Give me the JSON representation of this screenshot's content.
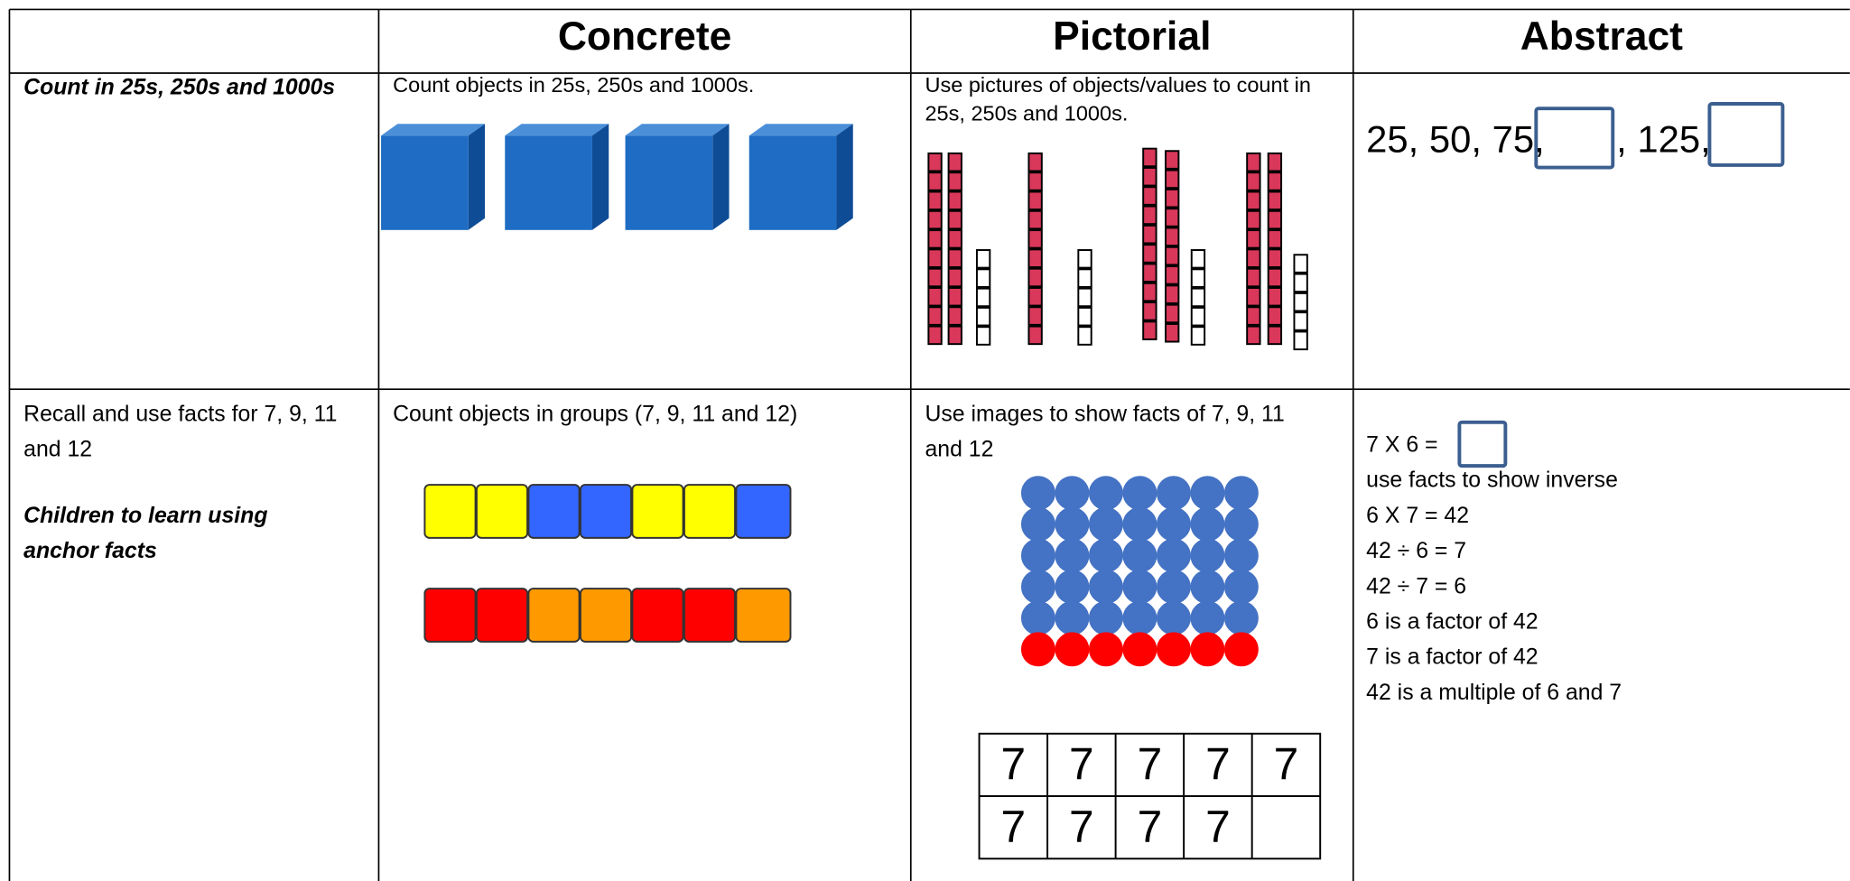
{
  "header": {
    "columns": [
      "Concrete",
      "Pictorial",
      "Abstract"
    ]
  },
  "rows": [
    {
      "objective": "Count in 25s, 250s and 1000s",
      "concrete": "Count objects in 25s, 250s and 1000s.",
      "pictorial": "Use pictures of objects/values to count in 25s, 250s and 1000s.",
      "abstract": {
        "part1": "25, 50, 75,",
        "part2": ", 125,"
      }
    },
    {
      "objective": "Recall and use facts for 7, 9, 11 and 12",
      "note": "Children to learn using anchor facts",
      "concrete": "Count objects in groups (7, 9, 11 and 12)",
      "pictorial": "Use images to show facts of 7, 9, 11 and 12",
      "grid": [
        [
          "7",
          "7",
          "7",
          "7",
          "7"
        ],
        [
          "7",
          "7",
          "7",
          "7"
        ]
      ],
      "abstract": {
        "equation": "7 X 6 =",
        "lines": [
          "use facts to show inverse",
          "6 X 7 = 42",
          "42 ÷ 6 = 7",
          "42 ÷ 7 = 6",
          "6 is a factor of 42",
          "7 is a factor of 42",
          "42 is a multiple of 6 and 7"
        ]
      }
    }
  ]
}
